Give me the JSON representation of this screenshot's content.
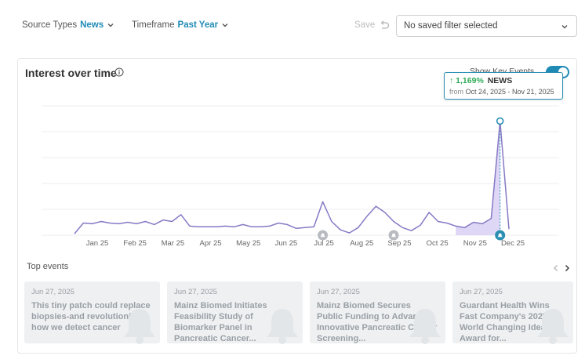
{
  "filters": {
    "source_types": {
      "label": "Source Types",
      "value": "News"
    },
    "timeframe": {
      "label": "Timeframe",
      "value": "Past Year"
    },
    "save_label": "Save",
    "saved_filter_placeholder": "No saved filter selected"
  },
  "card": {
    "title": "Interest over time",
    "toggle_label": "Show Key Events",
    "toggle_on": true
  },
  "tooltip": {
    "percent": "1,169%",
    "source": "NEWS",
    "from_label": "from",
    "range": "Oct 24, 2025 - Nov 21, 2025"
  },
  "chart_data": {
    "type": "line",
    "x_tick_labels": [
      "Jan 25",
      "Feb 25",
      "Mar 25",
      "Apr 25",
      "May 25",
      "Jun 25",
      "Jul 25",
      "Aug 25",
      "Sep 25",
      "Oct 25",
      "Nov 25",
      "Dec 25"
    ],
    "series": [
      {
        "values": [
          2,
          16,
          15,
          18,
          16,
          15,
          17,
          15,
          18,
          14,
          20,
          18,
          27,
          12,
          11,
          11,
          11,
          12,
          11,
          14,
          11,
          11,
          12,
          16,
          14,
          9,
          10,
          11,
          44,
          18,
          7,
          3,
          10,
          25,
          38,
          30,
          18,
          10,
          6,
          13,
          30,
          18,
          16,
          12,
          10,
          17,
          15,
          22,
          150,
          8
        ]
      }
    ],
    "ylim": [
      0,
      170
    ],
    "grid": true,
    "highlight_range_index": [
      43,
      48
    ],
    "peak_index": 48,
    "key_event_markers_index": [
      28,
      36,
      48
    ],
    "colors": {
      "line": "#8679c4",
      "fill": "#d9d0f4",
      "marker": "#2a8fb3",
      "event_marker": "#b8bcc1"
    }
  },
  "top_events": {
    "title": "Top events",
    "items": [
      {
        "date": "Jun 27, 2025",
        "headline": "This tiny patch could replace biopsies-and revolutionize how we detect cancer"
      },
      {
        "date": "Jun 27, 2025",
        "headline": "Mainz Biomed Initiates Feasibility Study of Biomarker Panel in Pancreatic Cancer..."
      },
      {
        "date": "Jun 27, 2025",
        "headline": "Mainz Biomed Secures Public Funding to Advance Innovative Pancreatic Cancer Screening..."
      },
      {
        "date": "Jun 27, 2025",
        "headline": "Guardant Health Wins Fast Company's 2025 World Changing Ideas Award for..."
      }
    ]
  }
}
